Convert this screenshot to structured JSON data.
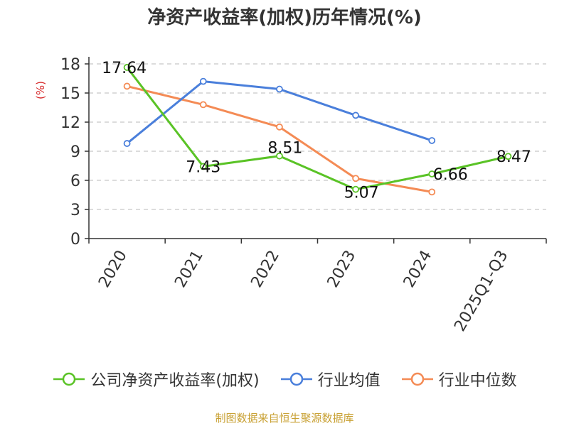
{
  "chart_data": {
    "type": "line",
    "title": "净资产收益率(加权)历年情况(%)",
    "ylabel": "(%)",
    "categories": [
      "2020",
      "2021",
      "2022",
      "2023",
      "2024",
      "2025Q1-Q3"
    ],
    "y_ticks": [
      "0",
      "3",
      "6",
      "9",
      "12",
      "15",
      "18"
    ],
    "ylim": [
      0,
      18
    ],
    "grid": true,
    "legend_position": "bottom",
    "series": [
      {
        "name": "公司净资产收益率(加权)",
        "color": "#5ac326",
        "values": [
          17.64,
          7.43,
          8.51,
          5.07,
          6.66,
          8.47
        ],
        "labels": [
          "17.64",
          "7.43",
          "8.51",
          "5.07",
          "6.66",
          "8.47"
        ]
      },
      {
        "name": "行业均值",
        "color": "#4a7fdb",
        "values": [
          9.8,
          16.2,
          15.4,
          12.7,
          10.1,
          null
        ]
      },
      {
        "name": "行业中位数",
        "color": "#f48b55",
        "values": [
          15.7,
          13.8,
          11.5,
          6.2,
          4.8,
          null
        ]
      }
    ],
    "source": "制图数据来自恒生聚源数据库"
  }
}
